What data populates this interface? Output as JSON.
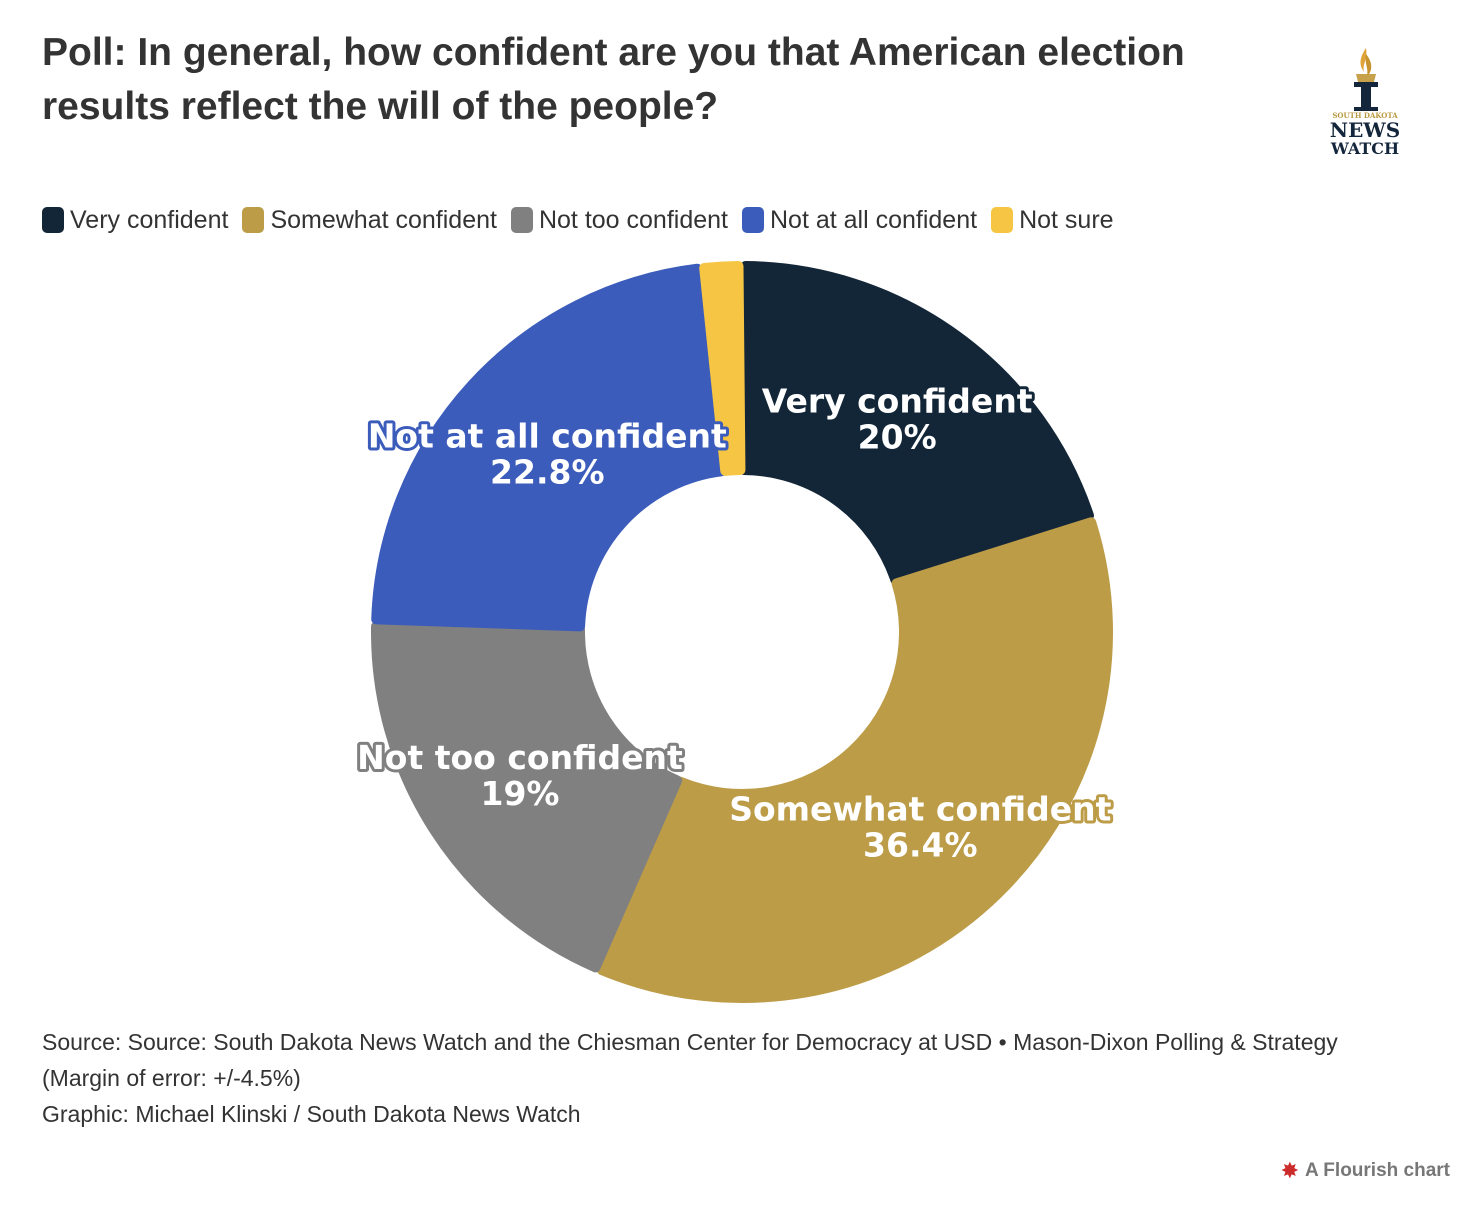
{
  "title": "Poll: In general, how confident are you that American election results reflect the will of the people?",
  "logo": {
    "top_text": "SOUTH DAKOTA",
    "line1": "NEWS",
    "line2": "WATCH",
    "icon": "torch-icon",
    "gold": "#b8993f",
    "navy": "#14263b"
  },
  "chart_data": {
    "type": "pie",
    "variant": "donut",
    "legend_position": "top-left",
    "categories": [
      "Very confident",
      "Somewhat confident",
      "Not too confident",
      "Not at all confident",
      "Not sure"
    ],
    "values": [
      20,
      36.4,
      19,
      22.8,
      1.8
    ],
    "value_labels": [
      "20%",
      "36.4%",
      "19%",
      "22.8%",
      ""
    ],
    "colors": [
      "#132638",
      "#bd9c48",
      "#808080",
      "#3b5cbb",
      "#f6c544"
    ]
  },
  "legend": [
    {
      "label": "Very confident",
      "color": "#132638"
    },
    {
      "label": "Somewhat confident",
      "color": "#bd9c48"
    },
    {
      "label": "Not too confident",
      "color": "#808080"
    },
    {
      "label": "Not at all confident",
      "color": "#3b5cbb"
    },
    {
      "label": "Not sure",
      "color": "#f6c544"
    }
  ],
  "footer": {
    "source": "Source: Source: South Dakota News Watch and the Chiesman Center for Democracy at USD • Mason-Dixon Polling & Strategy (Margin of error: +/-4.5%)",
    "graphic": "Graphic: Michael Klinski / South Dakota News Watch"
  },
  "credit": "A Flourish chart"
}
